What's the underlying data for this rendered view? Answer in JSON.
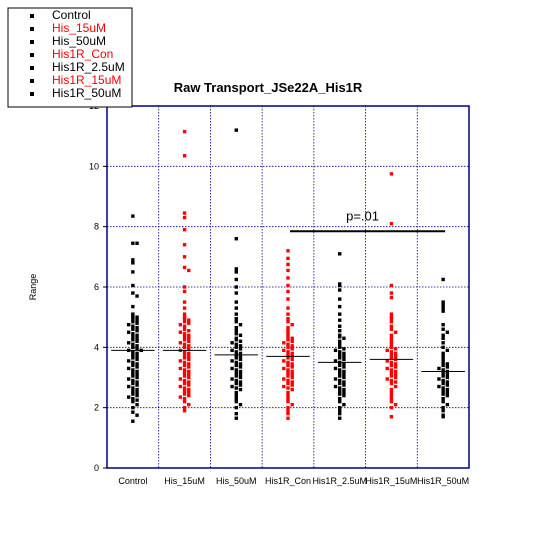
{
  "chart_data": {
    "type": "scatter",
    "title": "Raw Transport_JSe22A_His1R",
    "xlabel": "",
    "ylabel": "Range",
    "ylim": [
      0,
      12
    ],
    "yticks": [
      0,
      2,
      4,
      6,
      8,
      10,
      12
    ],
    "grid": true,
    "legend_position": "top-left",
    "categories": [
      "Control",
      "His_15uM",
      "His_50uM",
      "His1R_Con",
      "His1R_2.5uM",
      "His1R_15uM",
      "His1R_50uM"
    ],
    "series": [
      {
        "name": "Control",
        "color": "#000000",
        "median": 3.9,
        "values": [
          8.35,
          7.45,
          7.45,
          6.9,
          6.8,
          6.5,
          6.05,
          5.8,
          5.7,
          5.35,
          5.1,
          5.05,
          5.0,
          4.95,
          4.9,
          4.85,
          4.8,
          4.75,
          4.7,
          4.65,
          4.6,
          4.55,
          4.5,
          4.45,
          4.4,
          4.35,
          4.3,
          4.25,
          4.2,
          4.15,
          4.1,
          4.05,
          4.0,
          3.95,
          3.9,
          3.9,
          3.85,
          3.8,
          3.75,
          3.7,
          3.65,
          3.6,
          3.55,
          3.5,
          3.45,
          3.4,
          3.35,
          3.3,
          3.25,
          3.2,
          3.15,
          3.1,
          3.05,
          3.0,
          2.95,
          2.9,
          2.85,
          2.8,
          2.75,
          2.7,
          2.65,
          2.6,
          2.55,
          2.5,
          2.45,
          2.4,
          2.35,
          2.3,
          2.25,
          2.2,
          2.1,
          2.0,
          1.85,
          1.75,
          1.55
        ]
      },
      {
        "name": "His_15uM",
        "color": "#ff0000",
        "median": 3.9,
        "values": [
          11.15,
          10.35,
          8.45,
          8.3,
          7.9,
          7.4,
          7.0,
          6.65,
          6.55,
          6.0,
          5.85,
          5.5,
          5.3,
          5.1,
          5.0,
          4.95,
          4.9,
          4.85,
          4.8,
          4.75,
          4.7,
          4.6,
          4.55,
          4.5,
          4.45,
          4.4,
          4.35,
          4.3,
          4.25,
          4.2,
          4.15,
          4.1,
          4.05,
          4.0,
          3.95,
          3.9,
          3.85,
          3.8,
          3.75,
          3.7,
          3.65,
          3.6,
          3.55,
          3.5,
          3.45,
          3.4,
          3.35,
          3.3,
          3.25,
          3.2,
          3.15,
          3.1,
          3.05,
          3.0,
          2.95,
          2.9,
          2.85,
          2.8,
          2.75,
          2.7,
          2.65,
          2.6,
          2.55,
          2.5,
          2.45,
          2.4,
          2.35,
          2.3,
          2.2,
          2.1,
          2.0,
          1.9
        ]
      },
      {
        "name": "His_50uM",
        "color": "#000000",
        "median": 3.75,
        "values": [
          11.2,
          7.6,
          6.6,
          6.5,
          6.25,
          6.0,
          5.8,
          5.5,
          5.3,
          5.1,
          4.95,
          4.85,
          4.75,
          4.65,
          4.55,
          4.45,
          4.4,
          4.3,
          4.25,
          4.2,
          4.15,
          4.1,
          4.05,
          4.0,
          3.95,
          3.9,
          3.85,
          3.8,
          3.75,
          3.7,
          3.65,
          3.6,
          3.55,
          3.5,
          3.45,
          3.4,
          3.35,
          3.3,
          3.25,
          3.2,
          3.15,
          3.1,
          3.05,
          3.0,
          2.95,
          2.9,
          2.85,
          2.8,
          2.75,
          2.7,
          2.65,
          2.6,
          2.5,
          2.4,
          2.3,
          2.2,
          2.1,
          2.0,
          1.8,
          1.65
        ]
      },
      {
        "name": "His1R_Con",
        "color": "#ff0000",
        "median": 3.7,
        "values": [
          7.2,
          6.95,
          6.75,
          6.55,
          6.3,
          6.05,
          5.85,
          5.6,
          5.3,
          5.1,
          4.95,
          4.85,
          4.75,
          4.65,
          4.55,
          4.45,
          4.35,
          4.3,
          4.25,
          4.2,
          4.15,
          4.1,
          4.05,
          4.0,
          3.95,
          3.9,
          3.85,
          3.8,
          3.75,
          3.7,
          3.65,
          3.6,
          3.55,
          3.5,
          3.45,
          3.4,
          3.35,
          3.3,
          3.25,
          3.2,
          3.15,
          3.1,
          3.05,
          3.0,
          2.95,
          2.9,
          2.85,
          2.8,
          2.75,
          2.7,
          2.65,
          2.6,
          2.5,
          2.4,
          2.3,
          2.2,
          2.1,
          2.0,
          1.9,
          1.8,
          1.65
        ]
      },
      {
        "name": "His1R_2.5uM",
        "color": "#000000",
        "median": 3.5,
        "values": [
          7.1,
          6.1,
          6.05,
          5.9,
          5.6,
          5.35,
          5.1,
          4.9,
          4.7,
          4.55,
          4.4,
          4.35,
          4.3,
          4.2,
          4.1,
          4.0,
          3.95,
          3.9,
          3.85,
          3.8,
          3.75,
          3.7,
          3.65,
          3.6,
          3.55,
          3.5,
          3.45,
          3.4,
          3.35,
          3.3,
          3.25,
          3.2,
          3.15,
          3.1,
          3.05,
          3.0,
          2.95,
          2.9,
          2.85,
          2.8,
          2.75,
          2.7,
          2.65,
          2.6,
          2.55,
          2.5,
          2.45,
          2.4,
          2.3,
          2.2,
          2.1,
          2.0,
          1.9,
          1.8,
          1.65
        ]
      },
      {
        "name": "His1R_15uM",
        "color": "#ff0000",
        "median": 3.6,
        "values": [
          9.75,
          8.1,
          6.05,
          5.8,
          5.65,
          5.1,
          5.0,
          4.95,
          4.85,
          4.7,
          4.6,
          4.5,
          4.4,
          4.3,
          4.2,
          4.1,
          4.0,
          3.95,
          3.9,
          3.85,
          3.8,
          3.75,
          3.7,
          3.65,
          3.6,
          3.55,
          3.5,
          3.45,
          3.4,
          3.35,
          3.3,
          3.25,
          3.2,
          3.15,
          3.1,
          3.05,
          3.0,
          2.95,
          2.9,
          2.85,
          2.8,
          2.7,
          2.6,
          2.5,
          2.4,
          2.3,
          2.2,
          2.1,
          2.0,
          1.7
        ]
      },
      {
        "name": "His1R_50uM",
        "color": "#000000",
        "median": 3.2,
        "values": [
          6.25,
          5.5,
          5.4,
          5.3,
          5.2,
          4.75,
          4.6,
          4.5,
          4.4,
          4.3,
          4.15,
          4.0,
          3.9,
          3.8,
          3.7,
          3.6,
          3.5,
          3.45,
          3.4,
          3.35,
          3.3,
          3.25,
          3.2,
          3.15,
          3.1,
          3.05,
          3.0,
          2.95,
          2.9,
          2.85,
          2.8,
          2.75,
          2.7,
          2.65,
          2.6,
          2.55,
          2.5,
          2.45,
          2.4,
          2.3,
          2.2,
          2.1,
          2.0,
          1.9,
          1.75,
          1.7
        ]
      }
    ],
    "annotations": [
      {
        "text": "p=.01",
        "from_category": 3,
        "to_category": 6,
        "y": 7.85,
        "text_y": 8.2
      }
    ]
  }
}
